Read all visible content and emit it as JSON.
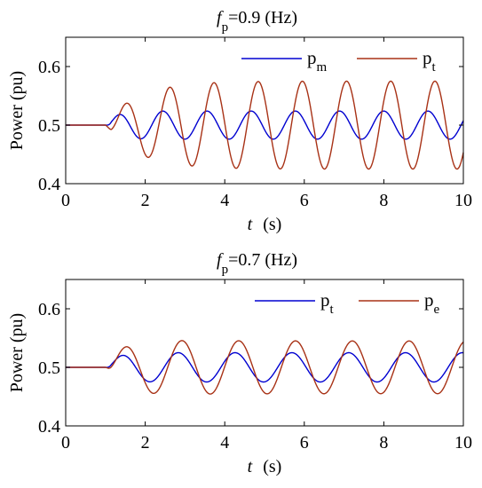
{
  "chart_data": [
    {
      "type": "line",
      "title": {
        "symbol": "f",
        "subscript": "p",
        "value": "=0.9 (Hz)"
      },
      "xlabel": {
        "symbol": "t",
        "unit": "(s)"
      },
      "ylabel": "Power (pu)",
      "xlim": [
        0,
        10
      ],
      "ylim": [
        0.4,
        0.65
      ],
      "x_ticks": [
        "0",
        "2",
        "4",
        "6",
        "8",
        "10"
      ],
      "y_ticks": [
        "0.4",
        "0.5",
        "0.6"
      ],
      "legend_position": "top-right",
      "series": [
        {
          "name": {
            "base": "p",
            "sub": "m"
          },
          "color": "#0000d0",
          "model": {
            "baseline": 0.5,
            "start": 1.0,
            "amplitude": 0.024,
            "frequency_hz": 0.9,
            "phase_rad": -0.3,
            "rise_tau": 0.25
          }
        },
        {
          "name": {
            "base": "p",
            "sub": "t"
          },
          "color": "#a83216",
          "model": {
            "baseline": 0.5,
            "start": 1.0,
            "amplitude": 0.075,
            "frequency_hz": 0.9,
            "phase_rad": -1.3,
            "rise_tau": 0.9,
            "overshoot": 0.08,
            "overshoot_tau": 1.5
          }
        }
      ]
    },
    {
      "type": "line",
      "title": {
        "symbol": "f",
        "subscript": "p",
        "value": "=0.7 (Hz)"
      },
      "xlabel": {
        "symbol": "t",
        "unit": "(s)"
      },
      "ylabel": "Power (pu)",
      "xlim": [
        0,
        10
      ],
      "ylim": [
        0.4,
        0.65
      ],
      "x_ticks": [
        "0",
        "2",
        "4",
        "6",
        "8",
        "10"
      ],
      "y_ticks": [
        "0.4",
        "0.5",
        "0.6"
      ],
      "legend_position": "top-right",
      "series": [
        {
          "name": {
            "base": "p",
            "sub": "t"
          },
          "color": "#0000d0",
          "model": {
            "baseline": 0.5,
            "start": 1.0,
            "amplitude": 0.025,
            "frequency_hz": 0.7,
            "phase_rad": -0.2,
            "rise_tau": 0.25
          }
        },
        {
          "name": {
            "base": "p",
            "sub": "e"
          },
          "color": "#a83216",
          "model": {
            "baseline": 0.5,
            "start": 1.0,
            "amplitude": 0.045,
            "frequency_hz": 0.7,
            "phase_rad": -0.6,
            "rise_tau": 0.4,
            "overshoot": 0.08,
            "overshoot_tau": 1.5
          }
        }
      ]
    }
  ]
}
